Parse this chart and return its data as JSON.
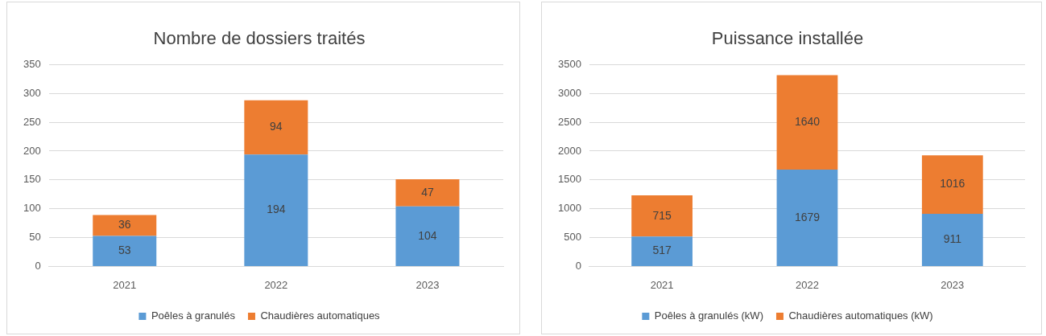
{
  "chart_data": [
    {
      "type": "bar",
      "title": "Nombre de dossiers traités",
      "categories": [
        "2021",
        "2022",
        "2023"
      ],
      "stacked": true,
      "series": [
        {
          "name": "Poêles à granulés",
          "color": "#5b9bd5",
          "values": [
            53,
            194,
            104
          ]
        },
        {
          "name": "Chaudières automatiques",
          "color": "#ed7d31",
          "values": [
            36,
            94,
            47
          ]
        }
      ],
      "ylim": [
        0,
        350
      ],
      "yticks": [
        0,
        50,
        100,
        150,
        200,
        250,
        300,
        350
      ],
      "grid": "y",
      "legend": "bottom",
      "data_labels": true
    },
    {
      "type": "bar",
      "title": "Puissance installée",
      "categories": [
        "2021",
        "2022",
        "2023"
      ],
      "stacked": true,
      "series": [
        {
          "name": "Poêles à granulés (kW)",
          "color": "#5b9bd5",
          "values": [
            517,
            1679,
            911
          ]
        },
        {
          "name": "Chaudières automatiques (kW)",
          "color": "#ed7d31",
          "values": [
            715,
            1640,
            1016
          ]
        }
      ],
      "ylim": [
        0,
        3500
      ],
      "yticks": [
        0,
        500,
        1000,
        1500,
        2000,
        2500,
        3000,
        3500
      ],
      "grid": "y",
      "legend": "bottom",
      "data_labels": true
    }
  ]
}
